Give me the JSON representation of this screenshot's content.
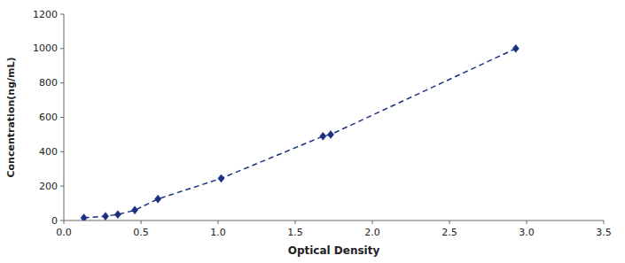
{
  "chart_data": {
    "type": "line",
    "xlabel": "Optical Density",
    "ylabel": "Concentration(ng/mL)",
    "x": [
      0.13,
      0.27,
      0.35,
      0.46,
      0.61,
      1.02,
      1.68,
      1.73,
      2.93
    ],
    "values": [
      15,
      25,
      35,
      60,
      125,
      245,
      490,
      500,
      1000
    ],
    "color": "#1a3080",
    "marker": "diamond",
    "line_style": "dashed",
    "xlim": [
      0,
      3.5
    ],
    "ylim": [
      0,
      1200
    ],
    "xticks": [
      {
        "value": 0,
        "label": "0.0"
      },
      0.5,
      {
        "value": 1,
        "label": "1.0"
      },
      1.5,
      {
        "value": 2,
        "label": "2.0"
      },
      2.5,
      {
        "value": 3,
        "label": "3.0"
      },
      3.5
    ],
    "yticks": [
      0,
      200,
      400,
      600,
      800,
      1000,
      1200
    ],
    "grid": false
  }
}
